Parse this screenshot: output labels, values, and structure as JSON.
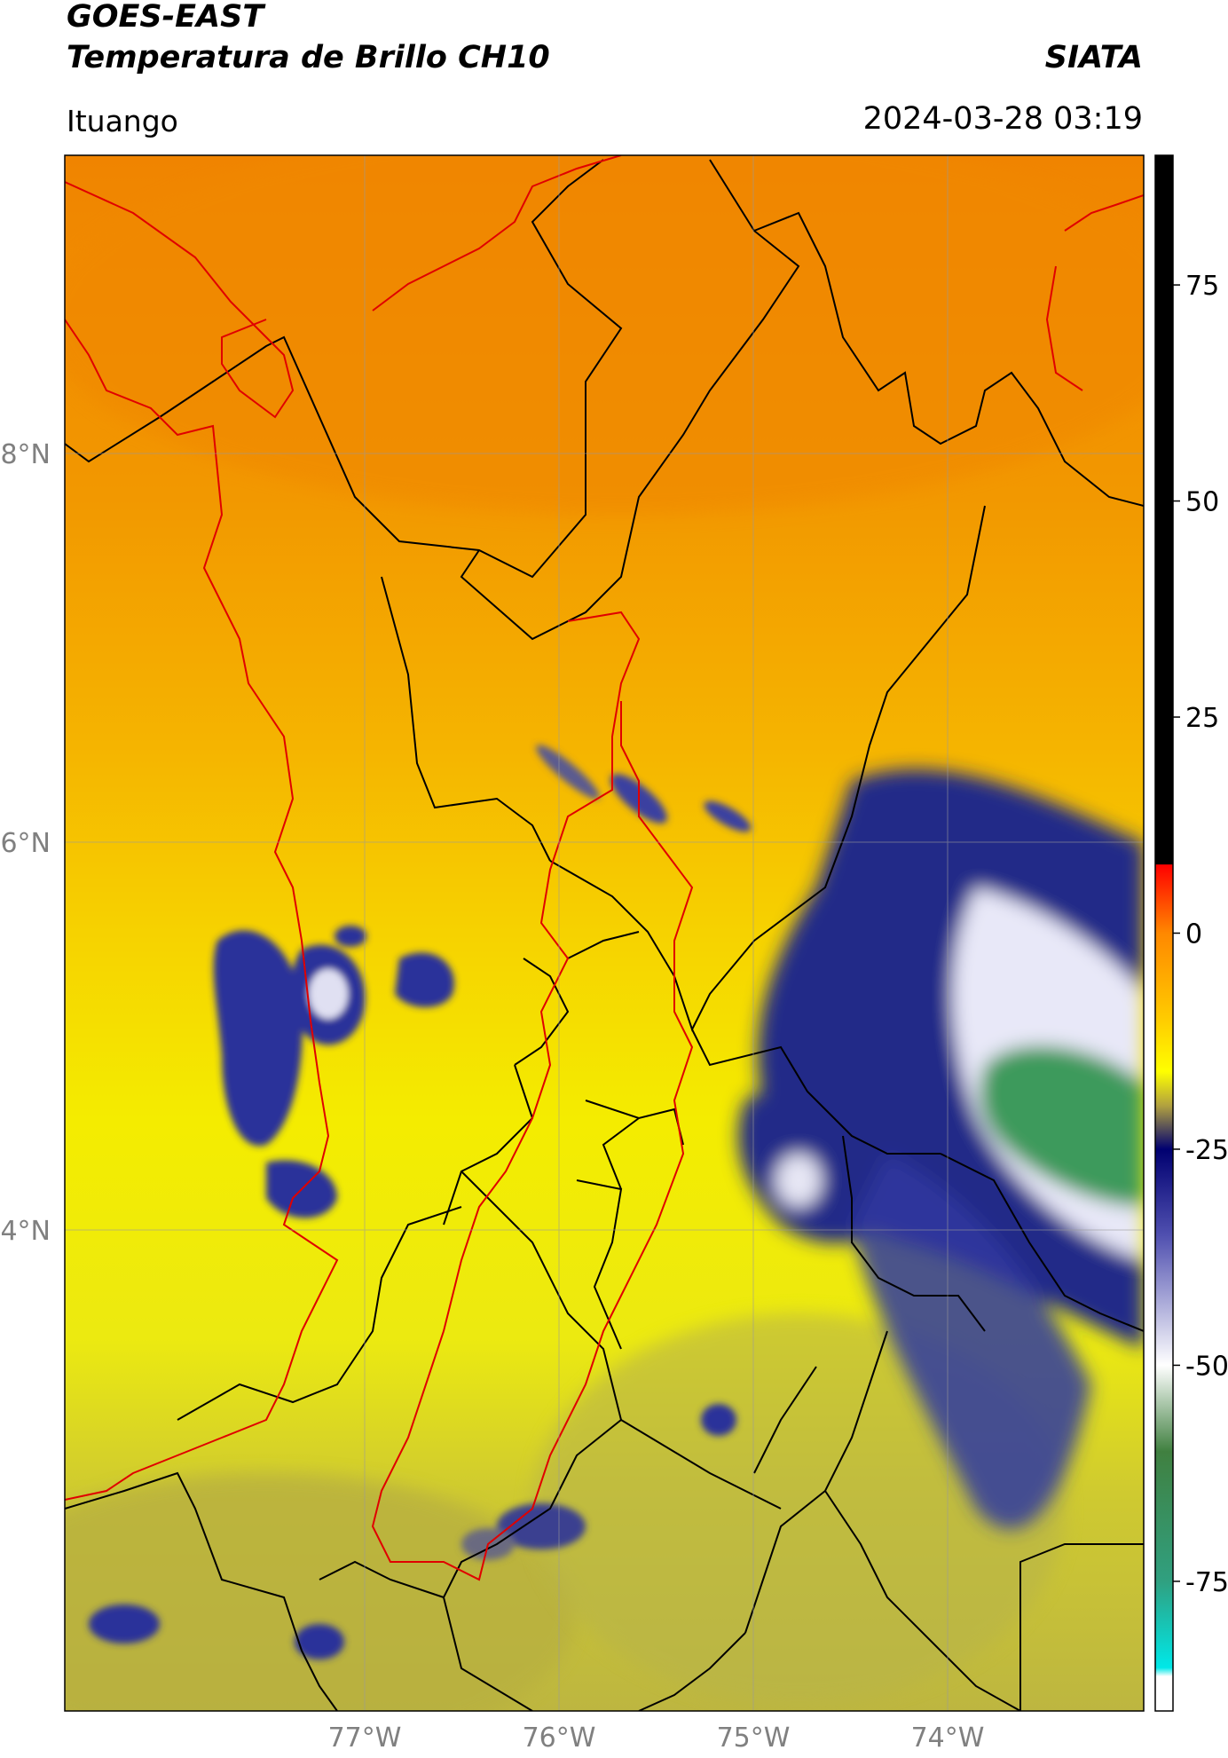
{
  "header": {
    "satellite": "GOES-EAST",
    "product": "Temperatura de Brillo CH10",
    "organization": "SIATA",
    "region": "Ituango",
    "datetime": "2024-03-28 03:19"
  },
  "map": {
    "latitude_labels": [
      "8°N",
      "6°N",
      "4°N"
    ],
    "longitude_labels": [
      "77°W",
      "76°W",
      "75°W",
      "74°W"
    ],
    "colors": {
      "warm_orange": "#f08c00",
      "orange": "#f5a800",
      "yellow": "#f7f000",
      "olive": "#c8c030",
      "navy": "#1a1f80",
      "white_core": "#f4f4ff",
      "green_core": "#3fa060",
      "departments_border": "#000000",
      "basin_border": "#e00000"
    }
  },
  "colorbar": {
    "tick_labels": [
      "75",
      "50",
      "25",
      "0",
      "-25",
      "-50",
      "-75"
    ],
    "range": [
      -90,
      90
    ],
    "stops": [
      {
        "value": 90,
        "color": "#000000"
      },
      {
        "value": 8,
        "color": "#000000"
      },
      {
        "value": 7.9,
        "color": "#ff0000"
      },
      {
        "value": 0,
        "color": "#ff8800"
      },
      {
        "value": -10,
        "color": "#ffcc00"
      },
      {
        "value": -16,
        "color": "#ffff00"
      },
      {
        "value": -20,
        "color": "#b0a040"
      },
      {
        "value": -25,
        "color": "#000070"
      },
      {
        "value": -35,
        "color": "#5050b0"
      },
      {
        "value": -50,
        "color": "#ffffff"
      },
      {
        "value": -60,
        "color": "#408040"
      },
      {
        "value": -75,
        "color": "#30a080"
      },
      {
        "value": -85,
        "color": "#00e8e8"
      },
      {
        "value": -86,
        "color": "#ffffff"
      },
      {
        "value": -90,
        "color": "#ffffff"
      }
    ]
  }
}
